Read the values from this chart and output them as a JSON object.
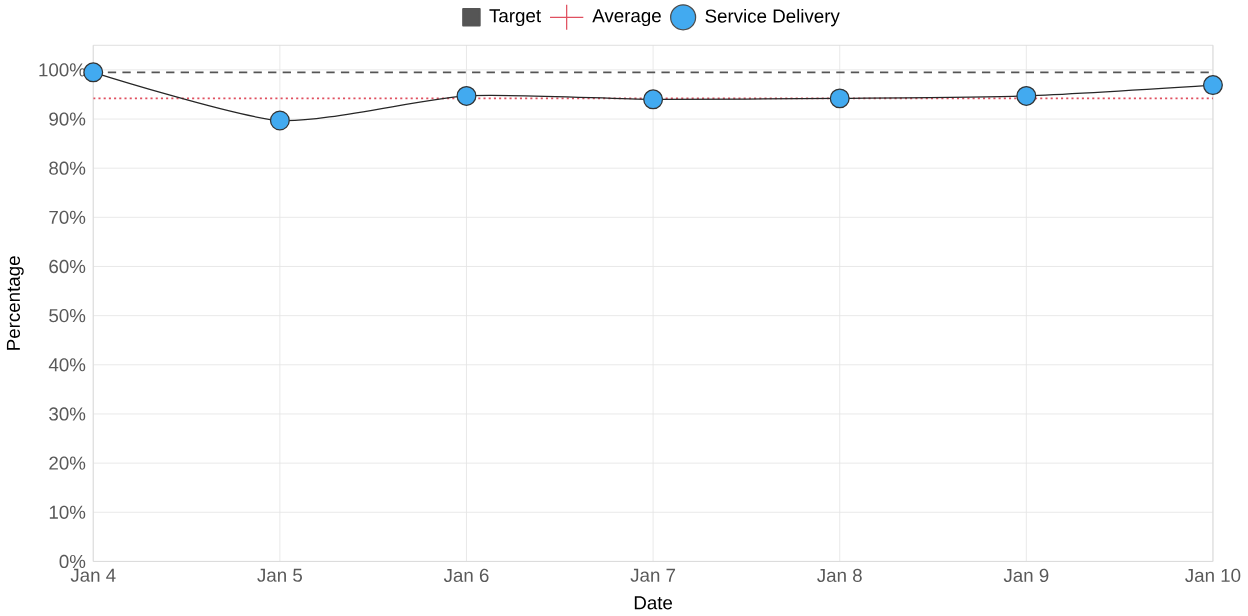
{
  "chart_data": {
    "type": "line",
    "xlabel": "Date",
    "ylabel": "Percentage",
    "categories": [
      "Jan 4",
      "Jan 5",
      "Jan 6",
      "Jan 7",
      "Jan 8",
      "Jan 9",
      "Jan 10"
    ],
    "series": [
      {
        "name": "Target",
        "color": "#555555",
        "values": [
          99.5,
          99.5,
          99.5,
          99.5,
          99.5,
          99.5,
          99.5
        ],
        "line_style": "dashed",
        "marker": "none"
      },
      {
        "name": "Average",
        "color": "#e05060",
        "values": [
          94.2,
          94.2,
          94.2,
          94.2,
          94.2,
          94.2,
          94.2
        ],
        "line_style": "dotted",
        "marker": "none"
      },
      {
        "name": "Service Delivery",
        "color": "#42aaf0",
        "values": [
          99.5,
          89.7,
          94.7,
          94.0,
          94.2,
          94.7,
          96.9
        ],
        "line_style": "solid",
        "marker": "circle"
      }
    ],
    "ylim": [
      0,
      105
    ],
    "yticks": [
      {
        "value": 0,
        "label": "0%"
      },
      {
        "value": 10,
        "label": "10%"
      },
      {
        "value": 20,
        "label": "20%"
      },
      {
        "value": 30,
        "label": "30%"
      },
      {
        "value": 40,
        "label": "40%"
      },
      {
        "value": 50,
        "label": "50%"
      },
      {
        "value": 60,
        "label": "60%"
      },
      {
        "value": 70,
        "label": "70%"
      },
      {
        "value": 80,
        "label": "80%"
      },
      {
        "value": 90,
        "label": "90%"
      },
      {
        "value": 100,
        "label": "100%"
      }
    ],
    "grid": true,
    "legend": "top"
  }
}
